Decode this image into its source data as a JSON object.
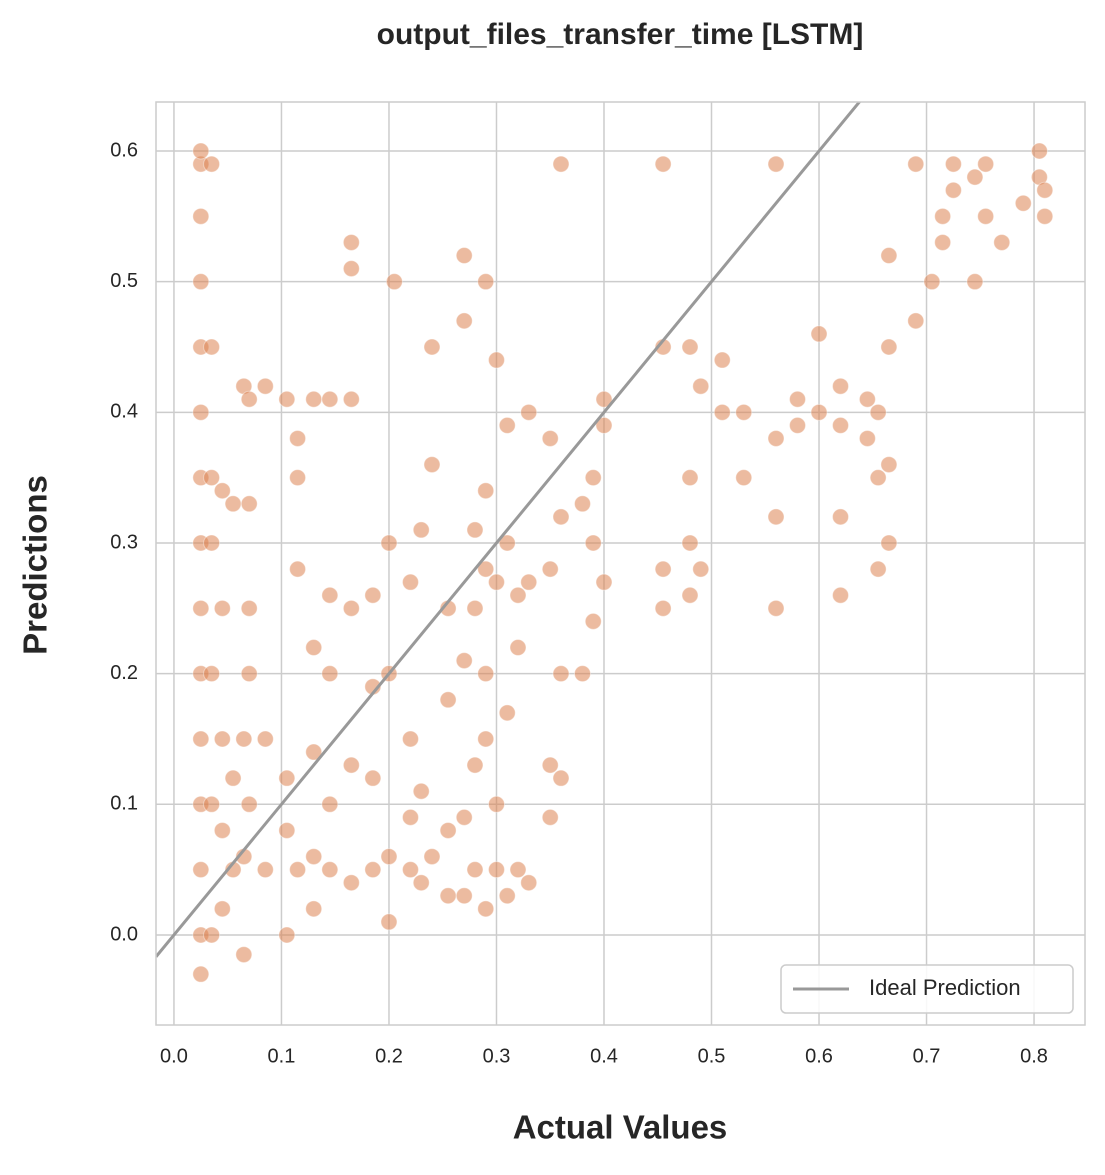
{
  "chart_data": {
    "type": "scatter",
    "title": "output_files_transfer_time [LSTM]",
    "x_label": "Actual Values",
    "y_label": "Predictions",
    "xlim": [
      -0.0167,
      0.8474
    ],
    "ylim": [
      -0.0689,
      0.6375
    ],
    "xticks": [
      {
        "value": 0,
        "label": "0.0"
      },
      0.1,
      0.2,
      0.3,
      0.4,
      0.5,
      0.6,
      0.7,
      0.8
    ],
    "yticks": [
      {
        "value": 0,
        "label": "0.0"
      },
      0.1,
      0.2,
      0.3,
      0.4,
      0.5,
      0.6
    ],
    "grid": true,
    "legend": "lower right",
    "series": [
      {
        "type": "scatter",
        "color": "#dd8452",
        "alpha": 0.55,
        "x": [
          0.025,
          0.025,
          0.025,
          0.025,
          0.025,
          0.025,
          0.025,
          0.025,
          0.025,
          0.025,
          0.025,
          0.025,
          0.025,
          0.025,
          0.025,
          0.035,
          0.035,
          0.035,
          0.035,
          0.035,
          0.035,
          0.035,
          0.045,
          0.045,
          0.045,
          0.045,
          0.045,
          0.055,
          0.055,
          0.055,
          0.065,
          0.065,
          0.065,
          0.065,
          0.07,
          0.07,
          0.07,
          0.07,
          0.07,
          0.085,
          0.085,
          0.085,
          0.105,
          0.105,
          0.105,
          0.105,
          0.115,
          0.115,
          0.115,
          0.115,
          0.13,
          0.13,
          0.13,
          0.13,
          0.13,
          0.145,
          0.145,
          0.145,
          0.145,
          0.145,
          0.165,
          0.165,
          0.165,
          0.165,
          0.165,
          0.165,
          0.185,
          0.185,
          0.185,
          0.185,
          0.2,
          0.2,
          0.2,
          0.2,
          0.205,
          0.22,
          0.22,
          0.22,
          0.22,
          0.23,
          0.23,
          0.23,
          0.24,
          0.24,
          0.24,
          0.255,
          0.255,
          0.255,
          0.255,
          0.27,
          0.27,
          0.27,
          0.27,
          0.27,
          0.28,
          0.28,
          0.28,
          0.28,
          0.29,
          0.29,
          0.29,
          0.29,
          0.29,
          0.29,
          0.3,
          0.3,
          0.3,
          0.3,
          0.31,
          0.31,
          0.31,
          0.31,
          0.32,
          0.32,
          0.32,
          0.33,
          0.33,
          0.33,
          0.35,
          0.35,
          0.35,
          0.35,
          0.36,
          0.36,
          0.36,
          0.36,
          0.38,
          0.38,
          0.39,
          0.39,
          0.39,
          0.4,
          0.4,
          0.4,
          0.455,
          0.455,
          0.455,
          0.455,
          0.48,
          0.48,
          0.48,
          0.48,
          0.49,
          0.49,
          0.51,
          0.51,
          0.53,
          0.53,
          0.56,
          0.56,
          0.56,
          0.56,
          0.58,
          0.58,
          0.6,
          0.6,
          0.62,
          0.62,
          0.62,
          0.62,
          0.645,
          0.645,
          0.655,
          0.655,
          0.655,
          0.665,
          0.665,
          0.665,
          0.665,
          0.69,
          0.69,
          0.705,
          0.715,
          0.715,
          0.725,
          0.725,
          0.745,
          0.745,
          0.755,
          0.755,
          0.77,
          0.79,
          0.805,
          0.805,
          0.81,
          0.81
        ],
        "y": [
          -0.03,
          0,
          0.05,
          0.1,
          0.15,
          0.2,
          0.25,
          0.3,
          0.35,
          0.4,
          0.45,
          0.5,
          0.55,
          0.59,
          0.6,
          0,
          0.1,
          0.2,
          0.3,
          0.35,
          0.45,
          0.59,
          0.02,
          0.08,
          0.15,
          0.25,
          0.34,
          0.05,
          0.12,
          0.33,
          -0.015,
          0.06,
          0.15,
          0.42,
          0.1,
          0.2,
          0.25,
          0.33,
          0.41,
          0.05,
          0.15,
          0.42,
          0,
          0.08,
          0.12,
          0.41,
          0.05,
          0.28,
          0.35,
          0.38,
          0.02,
          0.06,
          0.14,
          0.22,
          0.41,
          0.05,
          0.1,
          0.2,
          0.26,
          0.41,
          0.04,
          0.13,
          0.25,
          0.41,
          0.51,
          0.53,
          0.05,
          0.12,
          0.26,
          0.19,
          0.01,
          0.06,
          0.2,
          0.3,
          0.5,
          0.05,
          0.09,
          0.15,
          0.27,
          0.04,
          0.11,
          0.31,
          0.45,
          0.36,
          0.06,
          0.03,
          0.08,
          0.18,
          0.25,
          0.03,
          0.09,
          0.21,
          0.47,
          0.52,
          0.05,
          0.13,
          0.25,
          0.31,
          0.02,
          0.15,
          0.2,
          0.28,
          0.34,
          0.5,
          0.05,
          0.1,
          0.27,
          0.44,
          0.03,
          0.17,
          0.3,
          0.39,
          0.05,
          0.22,
          0.26,
          0.04,
          0.27,
          0.4,
          0.09,
          0.13,
          0.28,
          0.38,
          0.12,
          0.2,
          0.32,
          0.59,
          0.2,
          0.33,
          0.24,
          0.3,
          0.35,
          0.27,
          0.39,
          0.41,
          0.59,
          0.45,
          0.25,
          0.28,
          0.26,
          0.3,
          0.35,
          0.45,
          0.28,
          0.42,
          0.44,
          0.4,
          0.35,
          0.4,
          0.25,
          0.32,
          0.38,
          0.59,
          0.39,
          0.41,
          0.46,
          0.4,
          0.26,
          0.32,
          0.39,
          0.42,
          0.38,
          0.41,
          0.28,
          0.35,
          0.4,
          0.3,
          0.36,
          0.45,
          0.52,
          0.47,
          0.59,
          0.5,
          0.53,
          0.55,
          0.57,
          0.59,
          0.5,
          0.58,
          0.55,
          0.59,
          0.53,
          0.56,
          0.58,
          0.6,
          0.55,
          0.57
        ]
      },
      {
        "type": "line",
        "name": "Ideal Prediction",
        "color": "#999999",
        "x": [
          -0.0167,
          0.8474
        ],
        "y": [
          -0.0167,
          0.8474
        ]
      }
    ]
  }
}
